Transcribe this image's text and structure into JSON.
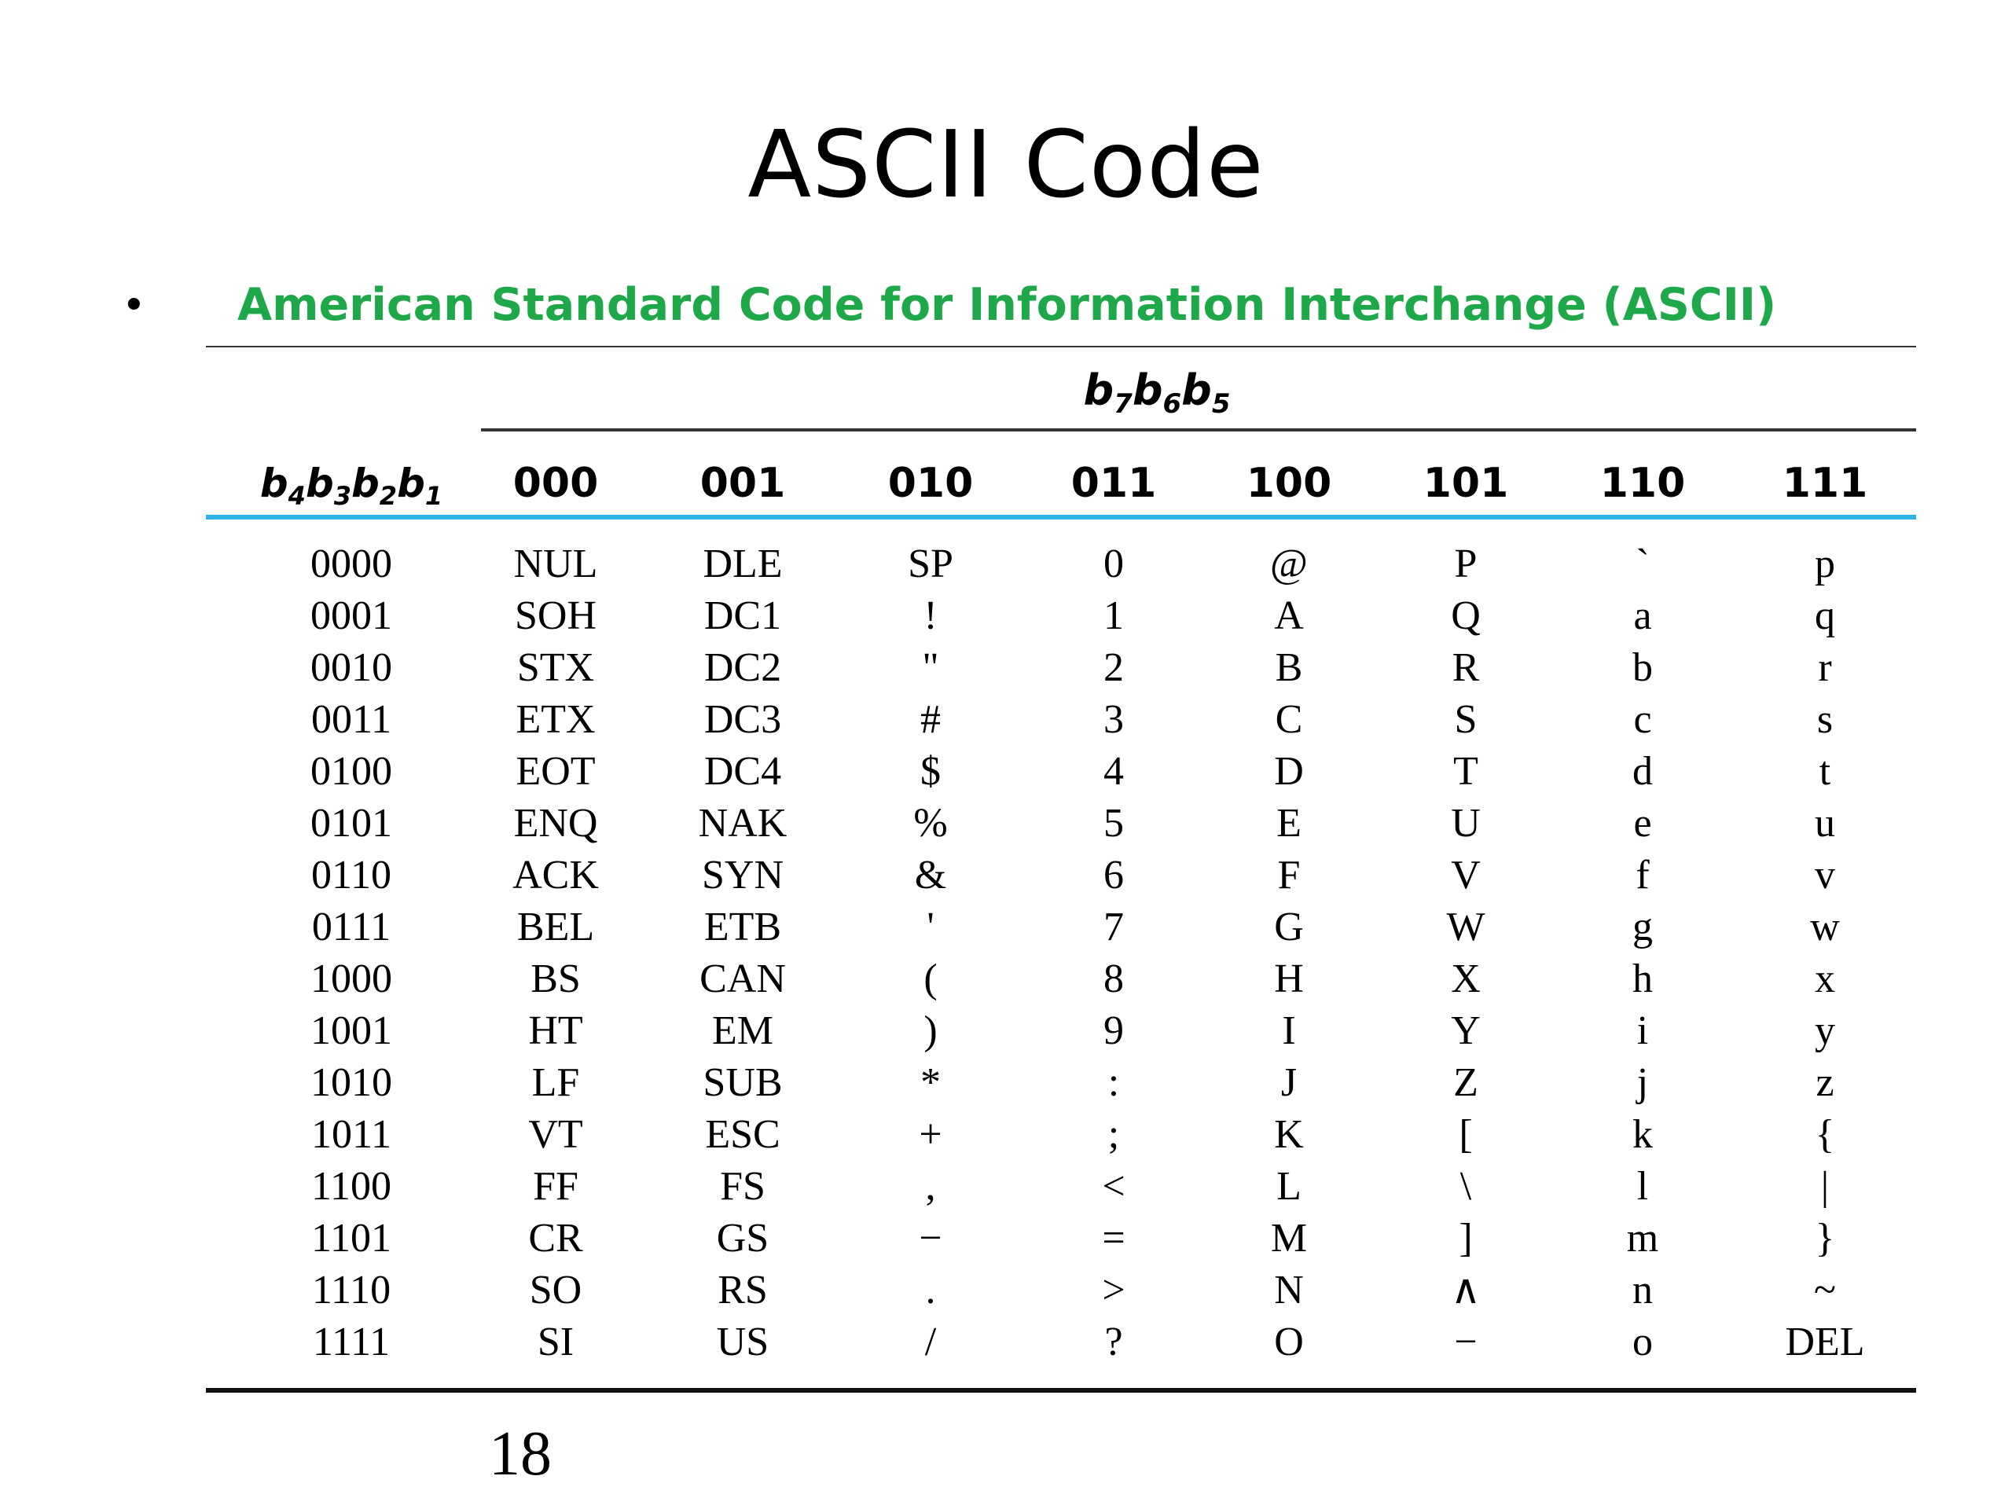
{
  "slide": {
    "title": "ASCII Code",
    "bullet": "American Standard Code for Information Interchange (ASCII)",
    "page_number": "18"
  },
  "table": {
    "column_group_header": {
      "b1": "b",
      "s1": "7",
      "b2": "b",
      "s2": "6",
      "b3": "b",
      "s3": "5"
    },
    "row_header": {
      "b1": "b",
      "s1": "4",
      "b2": "b",
      "s2": "3",
      "b3": "b",
      "s3": "2",
      "b4": "b",
      "s4": "1"
    },
    "columns": [
      "000",
      "001",
      "010",
      "011",
      "100",
      "101",
      "110",
      "111"
    ],
    "rows": [
      {
        "code": "0000",
        "cells": [
          "NUL",
          "DLE",
          "SP",
          "0",
          "@",
          "P",
          "`",
          "p"
        ]
      },
      {
        "code": "0001",
        "cells": [
          "SOH",
          "DC1",
          "!",
          "1",
          "A",
          "Q",
          "a",
          "q"
        ]
      },
      {
        "code": "0010",
        "cells": [
          "STX",
          "DC2",
          "\"",
          "2",
          "B",
          "R",
          "b",
          "r"
        ]
      },
      {
        "code": "0011",
        "cells": [
          "ETX",
          "DC3",
          "#",
          "3",
          "C",
          "S",
          "c",
          "s"
        ]
      },
      {
        "code": "0100",
        "cells": [
          "EOT",
          "DC4",
          "$",
          "4",
          "D",
          "T",
          "d",
          "t"
        ]
      },
      {
        "code": "0101",
        "cells": [
          "ENQ",
          "NAK",
          "%",
          "5",
          "E",
          "U",
          "e",
          "u"
        ]
      },
      {
        "code": "0110",
        "cells": [
          "ACK",
          "SYN",
          "&",
          "6",
          "F",
          "V",
          "f",
          "v"
        ]
      },
      {
        "code": "0111",
        "cells": [
          "BEL",
          "ETB",
          "'",
          "7",
          "G",
          "W",
          "g",
          "w"
        ]
      },
      {
        "code": "1000",
        "cells": [
          "BS",
          "CAN",
          "(",
          "8",
          "H",
          "X",
          "h",
          "x"
        ]
      },
      {
        "code": "1001",
        "cells": [
          "HT",
          "EM",
          ")",
          "9",
          "I",
          "Y",
          "i",
          "y"
        ]
      },
      {
        "code": "1010",
        "cells": [
          "LF",
          "SUB",
          "*",
          ":",
          "J",
          "Z",
          "j",
          "z"
        ]
      },
      {
        "code": "1011",
        "cells": [
          "VT",
          "ESC",
          "+",
          ";",
          "K",
          "[",
          "k",
          "{"
        ]
      },
      {
        "code": "1100",
        "cells": [
          "FF",
          "FS",
          ",",
          "<",
          "L",
          "\\",
          "l",
          "|"
        ]
      },
      {
        "code": "1101",
        "cells": [
          "CR",
          "GS",
          "−",
          "=",
          "M",
          "]",
          "m",
          "}"
        ]
      },
      {
        "code": "1110",
        "cells": [
          "SO",
          "RS",
          ".",
          ">",
          "N",
          "∧",
          "n",
          "~"
        ]
      },
      {
        "code": "1111",
        "cells": [
          "SI",
          "US",
          "/",
          "?",
          "O",
          "−",
          "o",
          "DEL"
        ]
      }
    ]
  },
  "colors": {
    "bullet_text": "#1fa84a",
    "header_rule": "#2bb3e6"
  }
}
